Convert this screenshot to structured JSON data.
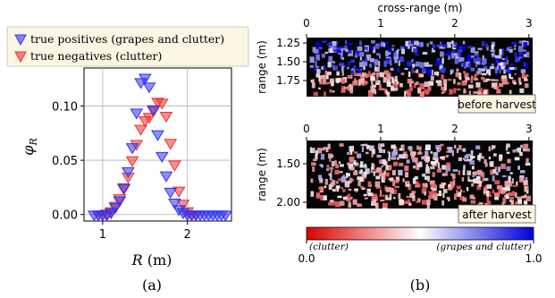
{
  "chart_data": [
    {
      "type": "scatter",
      "panel_label": "(a)",
      "xlabel": "R (m)",
      "ylabel": "φ_R",
      "xlim": [
        0.78,
        2.52
      ],
      "ylim": [
        -0.006,
        0.135
      ],
      "xticks": [
        "1",
        "2"
      ],
      "yticks": [
        "0.00",
        "0.05",
        "0.10"
      ],
      "grid": true,
      "legend_position": "top-left",
      "series": [
        {
          "name": "true positives (grapes and clutter)",
          "color": "#3333ee",
          "marker": "triangle-down",
          "x": [
            0.9,
            0.95,
            1.0,
            1.05,
            1.1,
            1.15,
            1.2,
            1.25,
            1.3,
            1.35,
            1.4,
            1.45,
            1.5,
            1.55,
            1.6,
            1.65,
            1.7,
            1.75,
            1.8,
            1.85,
            1.9,
            1.95,
            2.0,
            2.05,
            2.1,
            2.15,
            2.2,
            2.25,
            2.3,
            2.35,
            2.4,
            2.45
          ],
          "y": [
            0.0,
            0.0,
            0.0,
            0.0,
            0.002,
            0.007,
            0.013,
            0.025,
            0.04,
            0.062,
            0.094,
            0.122,
            0.126,
            0.118,
            0.097,
            0.074,
            0.054,
            0.036,
            0.021,
            0.011,
            0.005,
            0.002,
            0.0,
            0.0,
            0.0,
            0.0,
            0.0,
            0.0,
            0.0,
            0.0,
            0.0,
            0.0
          ]
        },
        {
          "name": "true negatives (clutter)",
          "color": "#ee3333",
          "marker": "triangle-down",
          "x": [
            0.95,
            1.0,
            1.05,
            1.1,
            1.15,
            1.2,
            1.25,
            1.3,
            1.35,
            1.4,
            1.45,
            1.5,
            1.55,
            1.6,
            1.65,
            1.7,
            1.75,
            1.8,
            1.85,
            1.9,
            1.95,
            2.0,
            2.05,
            2.1
          ],
          "y": [
            0.0,
            0.0,
            0.001,
            0.003,
            0.008,
            0.015,
            0.024,
            0.035,
            0.05,
            0.065,
            0.079,
            0.087,
            0.09,
            0.096,
            0.104,
            0.103,
            0.091,
            0.066,
            0.046,
            0.022,
            0.01,
            0.003,
            0.0,
            0.0
          ]
        }
      ]
    },
    {
      "type": "heatmap",
      "panel_label": "(b)",
      "title": "cross-range (m)",
      "ylabel": "range (m)",
      "xticks": [
        "0",
        "1",
        "2",
        "3"
      ],
      "subplots": [
        {
          "label": "before harvest",
          "yticks": [
            "1.25",
            "1.50",
            "1.75"
          ]
        },
        {
          "label": "after harvest",
          "yticks": [
            "1.50",
            "2.00"
          ]
        }
      ],
      "colorbar": {
        "min_label": "0.0",
        "max_label": "1.0",
        "low_caption": "(clutter)",
        "high_caption": "(grapes and clutter)",
        "colors": [
          "#dd0000",
          "#ffffff",
          "#0000dd"
        ]
      }
    }
  ]
}
